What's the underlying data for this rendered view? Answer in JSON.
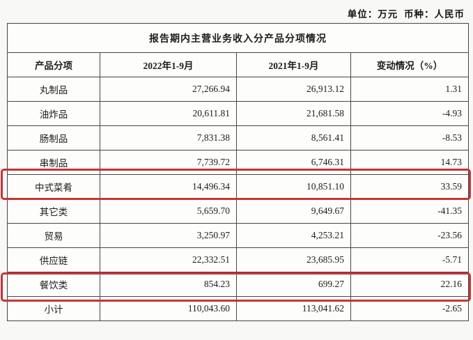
{
  "page": {
    "unit_line": "单位：万元  币种：人民币"
  },
  "table": {
    "title": "报告期内主营业务收入分产品分项情况",
    "headers": [
      "产品分项",
      "2022年1-9月",
      "2021年1-9月",
      "变动情况（%）"
    ],
    "rows": [
      {
        "name": "丸制品",
        "v2022": "27,266.94",
        "v2021": "26,913.12",
        "change": "1.31",
        "highlighted": false
      },
      {
        "name": "油炸品",
        "v2022": "20,611.81",
        "v2021": "21,681.58",
        "change": "-4.93",
        "highlighted": false
      },
      {
        "name": "肠制品",
        "v2022": "7,831.38",
        "v2021": "8,561.41",
        "change": "-8.53",
        "highlighted": false
      },
      {
        "name": "串制品",
        "v2022": "7,739.72",
        "v2021": "6,746.31",
        "change": "14.73",
        "highlighted": false
      },
      {
        "name": "中式菜肴",
        "v2022": "14,496.34",
        "v2021": "10,851.10",
        "change": "33.59",
        "highlighted": true
      },
      {
        "name": "其它类",
        "v2022": "5,659.70",
        "v2021": "9,649.67",
        "change": "-41.35",
        "highlighted": false
      },
      {
        "name": "贸易",
        "v2022": "3,250.97",
        "v2021": "4,253.21",
        "change": "-23.56",
        "highlighted": false
      },
      {
        "name": "供应链",
        "v2022": "22,332.51",
        "v2021": "23,685.95",
        "change": "-5.71",
        "highlighted": false
      },
      {
        "name": "餐饮类",
        "v2022": "854.23",
        "v2021": "699.27",
        "change": "22.16",
        "highlighted": true
      },
      {
        "name": "小计",
        "v2022": "110,043.60",
        "v2021": "113,041.62",
        "change": "-2.65",
        "highlighted": false
      }
    ]
  },
  "highlights": {
    "color": "#c63434",
    "highlighted_rows": [
      "中式菜肴",
      "餐饮类"
    ]
  }
}
